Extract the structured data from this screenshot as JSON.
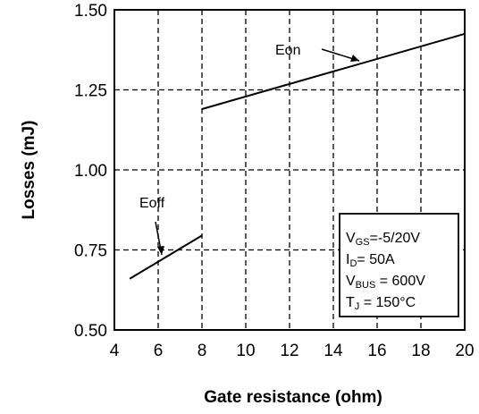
{
  "chart_data": {
    "type": "line",
    "xlabel": "Gate resistance (ohm)",
    "ylabel": "Losses (mJ)",
    "xlim": [
      4,
      20
    ],
    "ylim": [
      0.5,
      1.5
    ],
    "x_ticks": [
      "4",
      "6",
      "8",
      "10",
      "12",
      "14",
      "16",
      "18",
      "20"
    ],
    "y_ticks": [
      "0.50",
      "0.75",
      "1.00",
      "1.25",
      "1.50"
    ],
    "grid": true,
    "series": [
      {
        "name": "Eon",
        "x": [
          8,
          20
        ],
        "y": [
          1.19,
          1.425
        ]
      },
      {
        "name": "Eoff",
        "x": [
          4.7,
          8
        ],
        "y": [
          0.66,
          0.795
        ]
      }
    ],
    "annotations": {
      "eon_label": "Eon",
      "eoff_label": "Eoff"
    },
    "conditions": [
      {
        "main": "V",
        "sub": "GS",
        "rest": "=-5/20V"
      },
      {
        "main": "I",
        "sub": "D",
        "rest": "= 50A"
      },
      {
        "main": "V",
        "sub": "BUS",
        "rest": " = 600V"
      },
      {
        "main": "T",
        "sub": "J",
        "rest": " = 150°C"
      }
    ]
  }
}
